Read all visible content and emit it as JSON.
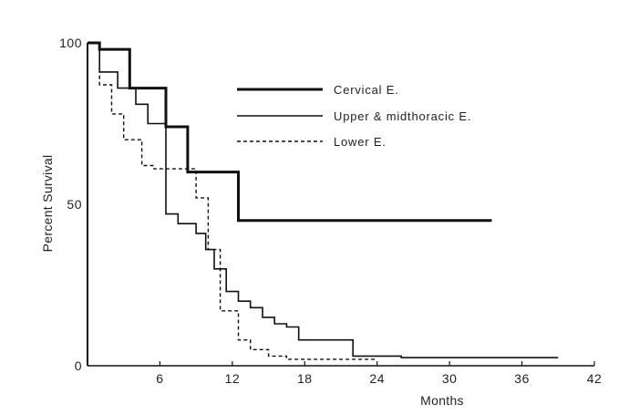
{
  "chart_data": {
    "type": "line",
    "title": "",
    "xlabel": "Months",
    "ylabel": "Percent Survival",
    "xlim": [
      0,
      42
    ],
    "ylim": [
      0,
      100
    ],
    "x_ticks": [
      6,
      12,
      18,
      24,
      30,
      36,
      42
    ],
    "y_ticks": [
      0,
      50,
      100
    ],
    "grid": false,
    "legend_placement": "top-center",
    "step": true,
    "series": [
      {
        "name": "Cervical E.",
        "style": "thick",
        "color": "#111111",
        "x": [
          0,
          1,
          1,
          3.5,
          3.5,
          6.5,
          6.5,
          8.3,
          8.3,
          12.5,
          12.5,
          33.5
        ],
        "y": [
          100,
          100,
          98,
          98,
          86,
          86,
          74,
          74,
          60,
          60,
          45,
          45
        ]
      },
      {
        "name": "Upper & midthoracic E.",
        "style": "thin",
        "color": "#111111",
        "x": [
          0,
          1,
          1,
          2.5,
          2.5,
          4,
          4,
          5,
          5,
          6.5,
          6.5,
          7.5,
          7.5,
          9,
          9,
          9.8,
          9.8,
          10.5,
          10.5,
          11.5,
          11.5,
          12.5,
          12.5,
          13.5,
          13.5,
          14.5,
          14.5,
          15.5,
          15.5,
          16.5,
          16.5,
          17.5,
          17.5,
          22,
          22,
          26,
          26,
          39
        ],
        "y": [
          100,
          100,
          91,
          91,
          86,
          86,
          81,
          81,
          75,
          75,
          47,
          47,
          44,
          44,
          41,
          41,
          36,
          36,
          30,
          30,
          23,
          23,
          20,
          20,
          18,
          18,
          15,
          15,
          13,
          13,
          12,
          12,
          8,
          8,
          3,
          3,
          2.5,
          2.5
        ]
      },
      {
        "name": "Lower E.",
        "style": "dashed",
        "color": "#111111",
        "x": [
          0,
          1,
          1,
          2,
          2,
          3,
          3,
          4.5,
          4.5,
          5.5,
          5.5,
          9,
          9,
          10,
          10,
          11,
          11,
          12.5,
          12.5,
          13.5,
          13.5,
          15,
          15,
          16.5,
          16.5,
          24
        ],
        "y": [
          100,
          100,
          87,
          87,
          78,
          78,
          70,
          70,
          62,
          62,
          61,
          61,
          52,
          52,
          36,
          36,
          17,
          17,
          8,
          8,
          5,
          5,
          3,
          3,
          2,
          2
        ]
      }
    ]
  }
}
